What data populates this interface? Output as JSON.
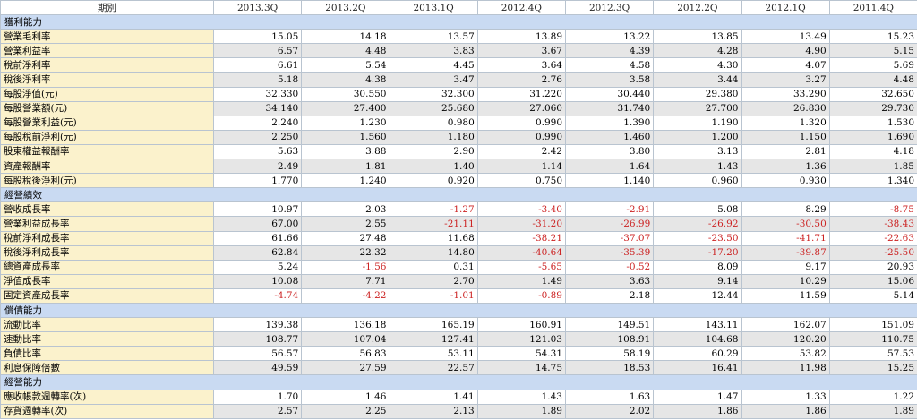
{
  "header": {
    "period_label": "期別",
    "periods": [
      "2013.3Q",
      "2013.2Q",
      "2013.1Q",
      "2012.4Q",
      "2012.3Q",
      "2012.2Q",
      "2012.1Q",
      "2011.4Q"
    ]
  },
  "sections": [
    {
      "title": "獲利能力",
      "rows": [
        {
          "label": "營業毛利率",
          "values": [
            "15.05",
            "14.18",
            "13.57",
            "13.89",
            "13.22",
            "13.85",
            "13.49",
            "15.23"
          ]
        },
        {
          "label": "營業利益率",
          "values": [
            "6.57",
            "4.48",
            "3.83",
            "3.67",
            "4.39",
            "4.28",
            "4.90",
            "5.15"
          ]
        },
        {
          "label": "稅前淨利率",
          "values": [
            "6.61",
            "5.54",
            "4.45",
            "3.64",
            "4.58",
            "4.30",
            "4.07",
            "5.69"
          ]
        },
        {
          "label": "稅後淨利率",
          "values": [
            "5.18",
            "4.38",
            "3.47",
            "2.76",
            "3.58",
            "3.44",
            "3.27",
            "4.48"
          ]
        },
        {
          "label": "每股淨值(元)",
          "values": [
            "32.330",
            "30.550",
            "32.300",
            "31.220",
            "30.440",
            "29.380",
            "33.290",
            "32.650"
          ]
        },
        {
          "label": "每股營業額(元)",
          "values": [
            "34.140",
            "27.400",
            "25.680",
            "27.060",
            "31.740",
            "27.700",
            "26.830",
            "29.730"
          ]
        },
        {
          "label": "每股營業利益(元)",
          "values": [
            "2.240",
            "1.230",
            "0.980",
            "0.990",
            "1.390",
            "1.190",
            "1.320",
            "1.530"
          ]
        },
        {
          "label": "每股稅前淨利(元)",
          "values": [
            "2.250",
            "1.560",
            "1.180",
            "0.990",
            "1.460",
            "1.200",
            "1.150",
            "1.690"
          ]
        },
        {
          "label": "股東權益報酬率",
          "values": [
            "5.63",
            "3.88",
            "2.90",
            "2.42",
            "3.80",
            "3.13",
            "2.81",
            "4.18"
          ]
        },
        {
          "label": "資產報酬率",
          "values": [
            "2.49",
            "1.81",
            "1.40",
            "1.14",
            "1.64",
            "1.43",
            "1.36",
            "1.85"
          ]
        },
        {
          "label": "每股稅後淨利(元)",
          "values": [
            "1.770",
            "1.240",
            "0.920",
            "0.750",
            "1.140",
            "0.960",
            "0.930",
            "1.340"
          ]
        }
      ]
    },
    {
      "title": "經營績效",
      "rows": [
        {
          "label": "營收成長率",
          "values": [
            "10.97",
            "2.03",
            "-1.27",
            "-3.40",
            "-2.91",
            "5.08",
            "8.29",
            "-8.75"
          ]
        },
        {
          "label": "營業利益成長率",
          "values": [
            "67.00",
            "2.55",
            "-21.11",
            "-31.20",
            "-26.99",
            "-26.92",
            "-30.50",
            "-38.43"
          ]
        },
        {
          "label": "稅前淨利成長率",
          "values": [
            "61.66",
            "27.48",
            "11.68",
            "-38.21",
            "-37.07",
            "-23.50",
            "-41.71",
            "-22.63"
          ]
        },
        {
          "label": "稅後淨利成長率",
          "values": [
            "62.84",
            "22.32",
            "14.80",
            "-40.64",
            "-35.39",
            "-17.20",
            "-39.87",
            "-25.50"
          ]
        },
        {
          "label": "總資產成長率",
          "values": [
            "5.24",
            "-1.56",
            "0.31",
            "-5.65",
            "-0.52",
            "8.09",
            "9.17",
            "20.93"
          ]
        },
        {
          "label": "淨值成長率",
          "values": [
            "10.08",
            "7.71",
            "2.70",
            "1.49",
            "3.63",
            "9.14",
            "10.29",
            "15.06"
          ]
        },
        {
          "label": "固定資產成長率",
          "values": [
            "-4.74",
            "-4.22",
            "-1.01",
            "-0.89",
            "2.18",
            "12.44",
            "11.59",
            "5.14"
          ]
        }
      ]
    },
    {
      "title": "償債能力",
      "rows": [
        {
          "label": "流動比率",
          "values": [
            "139.38",
            "136.18",
            "165.19",
            "160.91",
            "149.51",
            "143.11",
            "162.07",
            "151.09"
          ]
        },
        {
          "label": "速動比率",
          "values": [
            "108.77",
            "107.04",
            "127.41",
            "121.03",
            "108.91",
            "104.68",
            "120.20",
            "110.75"
          ]
        },
        {
          "label": "負債比率",
          "values": [
            "56.57",
            "56.83",
            "53.11",
            "54.31",
            "58.19",
            "60.29",
            "53.82",
            "57.53"
          ]
        },
        {
          "label": "利息保障倍數",
          "values": [
            "49.59",
            "27.59",
            "22.57",
            "14.75",
            "18.53",
            "16.41",
            "11.98",
            "15.25"
          ]
        }
      ]
    },
    {
      "title": "經營能力",
      "rows": [
        {
          "label": "應收帳款週轉率(次)",
          "values": [
            "1.70",
            "1.46",
            "1.41",
            "1.43",
            "1.63",
            "1.47",
            "1.33",
            "1.22"
          ]
        },
        {
          "label": "存貨週轉率(次)",
          "values": [
            "2.57",
            "2.25",
            "2.13",
            "1.89",
            "2.02",
            "1.86",
            "1.86",
            "1.89"
          ]
        }
      ]
    }
  ]
}
